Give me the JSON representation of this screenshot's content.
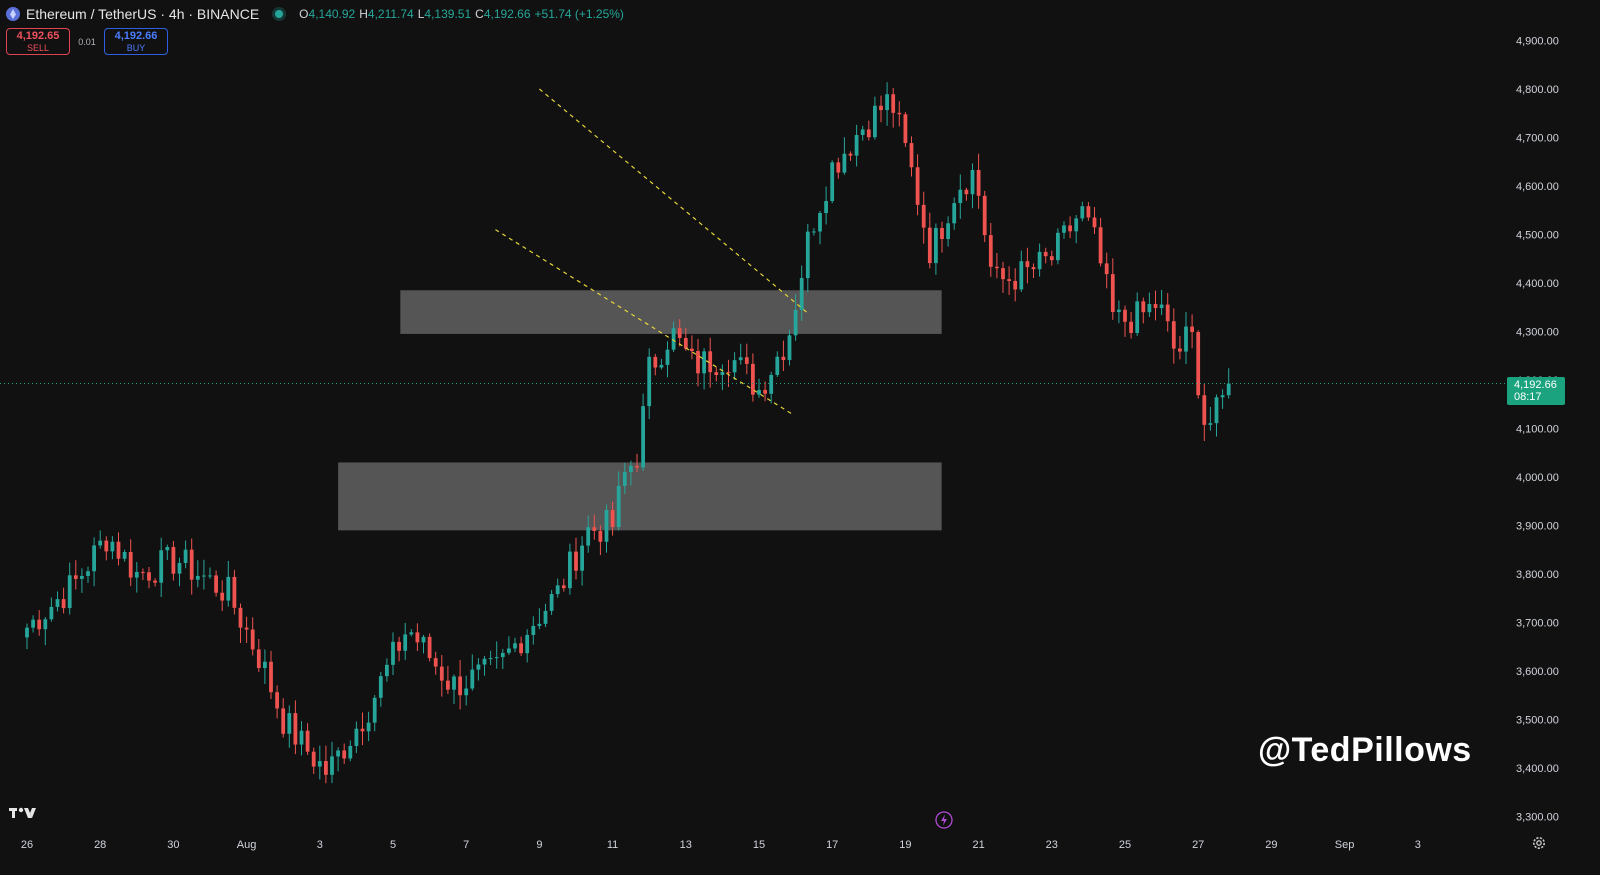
{
  "header": {
    "title": "Ethereum / TetherUS · 4h · BINANCE",
    "ohlc": [
      {
        "k": "O",
        "v": "4,140.92"
      },
      {
        "k": "H",
        "v": "4,211.74"
      },
      {
        "k": "L",
        "v": "4,139.51"
      },
      {
        "k": "C",
        "v": "4,192.66"
      }
    ],
    "change": "+51.74 (+1.25%)"
  },
  "trade": {
    "sell_price": "4,192.65",
    "sell_label": "SELL",
    "spread": "0.01",
    "buy_price": "4,192.66",
    "buy_label": "BUY"
  },
  "last_price_tag": {
    "price": "4,192.66",
    "countdown": "08:17"
  },
  "watermark": "@TedPillows",
  "colors": {
    "up": "#26a69a",
    "down": "#ef5350",
    "zone": "#5a5a5a",
    "trend": "#e5d43a",
    "tag": "#1ba37f"
  },
  "icons": [
    "ethereum-icon",
    "status-dot-icon",
    "tradingview-logo-icon",
    "flash-icon",
    "settings-gear-icon"
  ],
  "chart_data": {
    "type": "candlestick",
    "symbol": "ETHUSDT",
    "interval": "4h",
    "ylim": [
      3285,
      4935
    ],
    "y_ticks": [
      "4,900.00",
      "4,800.00",
      "4,700.00",
      "4,600.00",
      "4,500.00",
      "4,400.00",
      "4,300.00",
      "4,200.00",
      "4,100.00",
      "4,000.00",
      "3,900.00",
      "3,800.00",
      "3,700.00",
      "3,600.00",
      "3,500.00",
      "3,400.00",
      "3,300.00"
    ],
    "x_ticks": [
      "26",
      "28",
      "30",
      "Aug",
      "3",
      "5",
      "7",
      "9",
      "11",
      "13",
      "15",
      "17",
      "19",
      "21",
      "23",
      "25",
      "27",
      "29",
      "Sep",
      "3"
    ],
    "last_price": 4192.66,
    "zones": [
      {
        "from_day": 10.2,
        "to_day": 24.99,
        "low": 4295,
        "high": 4385
      },
      {
        "from_day": 8.5,
        "to_day": 24.99,
        "low": 3890,
        "high": 4030
      }
    ],
    "trendlines": [
      {
        "day1": 14.0,
        "price1": 4800,
        "day2": 21.3,
        "price2": 4340
      },
      {
        "day1": 12.8,
        "price1": 4510,
        "day2": 20.9,
        "price2": 4130
      }
    ],
    "anchors": [
      [
        0,
        3690
      ],
      [
        1.3,
        3780
      ],
      [
        2.2,
        3880
      ],
      [
        3.0,
        3800
      ],
      [
        4.1,
        3830
      ],
      [
        5.5,
        3760
      ],
      [
        6.4,
        3620
      ],
      [
        7.0,
        3500
      ],
      [
        7.5,
        3450
      ],
      [
        8.2,
        3390
      ],
      [
        9.3,
        3520
      ],
      [
        10.4,
        3690
      ],
      [
        11.6,
        3570
      ],
      [
        12.8,
        3600
      ],
      [
        13.8,
        3700
      ],
      [
        14.5,
        3760
      ],
      [
        15.3,
        3890
      ],
      [
        16.0,
        3900
      ],
      [
        16.3,
        4000
      ],
      [
        16.7,
        4050
      ],
      [
        17.0,
        4220
      ],
      [
        17.6,
        4300
      ],
      [
        18.2,
        4230
      ],
      [
        19.2,
        4250
      ],
      [
        20.0,
        4180
      ],
      [
        20.8,
        4290
      ],
      [
        21.4,
        4510
      ],
      [
        22.0,
        4640
      ],
      [
        22.8,
        4720
      ],
      [
        23.6,
        4780
      ],
      [
        24.2,
        4620
      ],
      [
        24.7,
        4460
      ],
      [
        25.4,
        4600
      ],
      [
        25.9,
        4630
      ],
      [
        26.4,
        4400
      ],
      [
        27.3,
        4420
      ],
      [
        28.0,
        4450
      ],
      [
        28.8,
        4550
      ],
      [
        29.2,
        4480
      ],
      [
        29.7,
        4320
      ],
      [
        30.4,
        4330
      ],
      [
        30.9,
        4360
      ],
      [
        31.4,
        4250
      ],
      [
        31.8,
        4300
      ],
      [
        32.2,
        4100
      ],
      [
        32.6,
        4140
      ],
      [
        32.8,
        4192.66
      ]
    ]
  }
}
